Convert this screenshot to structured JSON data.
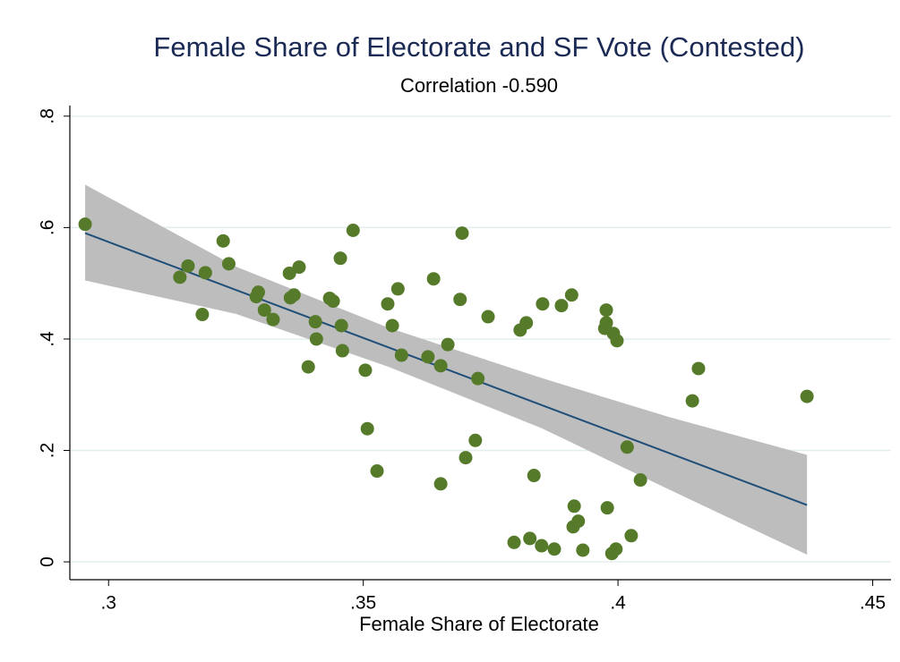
{
  "chart_data": {
    "type": "scatter",
    "title": "Female Share of Electorate and SF Vote (Contested)",
    "subtitle": "Correlation -0.590",
    "x_label": "Female Share of Electorate",
    "color": "#557a2a",
    "grid": true,
    "xlim": [
      0.2924,
      0.4536
    ],
    "ylim": [
      -0.032,
      0.819
    ],
    "xticks": [
      {
        "value": 0.3,
        "label": ".3"
      },
      {
        "value": 0.35,
        "label": ".35"
      },
      {
        "value": 0.4,
        "label": ".4"
      },
      {
        "value": 0.45,
        "label": ".45"
      }
    ],
    "yticks": [
      0,
      {
        "value": 0.2,
        "label": ".2"
      },
      {
        "value": 0.4,
        "label": ".4"
      },
      {
        "value": 0.6,
        "label": ".6"
      },
      {
        "value": 0.8,
        "label": ".8"
      }
    ],
    "x": [
      0.2954,
      0.314,
      0.3156,
      0.319,
      0.3184,
      0.3225,
      0.3236,
      0.3294,
      0.329,
      0.3306,
      0.3323,
      0.3355,
      0.3364,
      0.3357,
      0.3374,
      0.3392,
      0.3406,
      0.3408,
      0.3434,
      0.3441,
      0.3455,
      0.3457,
      0.3459,
      0.348,
      0.3504,
      0.3508,
      0.3527,
      0.3548,
      0.3557,
      0.3568,
      0.3575,
      0.3627,
      0.3638,
      0.3652,
      0.3652,
      0.3666,
      0.369,
      0.3694,
      0.3701,
      0.372,
      0.3725,
      0.3745,
      0.3796,
      0.3808,
      0.382,
      0.3827,
      0.3835,
      0.385,
      0.3852,
      0.3875,
      0.3889,
      0.3909,
      0.3912,
      0.3914,
      0.3922,
      0.3931,
      0.3977,
      0.3977,
      0.3974,
      0.3979,
      0.3988,
      0.3991,
      0.3996,
      0.3998,
      0.4018,
      0.4026,
      0.4044,
      0.4146,
      0.4158,
      0.4371
    ],
    "values": [
      0.606,
      0.511,
      0.531,
      0.519,
      0.444,
      0.576,
      0.535,
      0.484,
      0.476,
      0.452,
      0.435,
      0.518,
      0.479,
      0.474,
      0.529,
      0.35,
      0.431,
      0.4,
      0.473,
      0.468,
      0.545,
      0.424,
      0.379,
      0.595,
      0.344,
      0.239,
      0.163,
      0.463,
      0.424,
      0.49,
      0.371,
      0.368,
      0.508,
      0.352,
      0.14,
      0.39,
      0.471,
      0.59,
      0.187,
      0.218,
      0.329,
      0.44,
      0.035,
      0.416,
      0.429,
      0.042,
      0.155,
      0.029,
      0.463,
      0.023,
      0.46,
      0.479,
      0.063,
      0.1,
      0.073,
      0.021,
      0.452,
      0.429,
      0.419,
      0.097,
      0.015,
      0.41,
      0.023,
      0.397,
      0.206,
      0.047,
      0.147,
      0.289,
      0.347,
      0.297
    ],
    "fit": {
      "color": "#1f4e79",
      "x": [
        0.2954,
        0.4371
      ],
      "values": [
        0.59,
        0.102
      ]
    },
    "ci": {
      "color": "#bdbdbd",
      "x": [
        0.2954,
        0.325,
        0.355,
        0.385,
        0.41,
        0.4371
      ],
      "upper": [
        0.677,
        0.53,
        0.42,
        0.33,
        0.26,
        0.192
      ],
      "lower": [
        0.505,
        0.445,
        0.35,
        0.24,
        0.13,
        0.013
      ]
    }
  }
}
